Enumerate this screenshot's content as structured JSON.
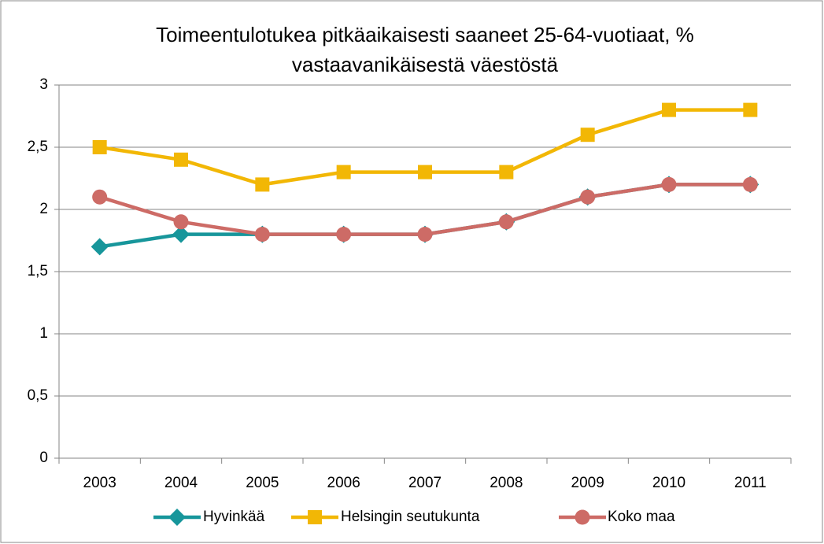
{
  "chart_data": {
    "type": "line",
    "title": [
      "Toimeentulotukea pitkäaikaisesti saaneet 25-64-vuotiaat, %",
      "vastaavanikäisestä väestöstä"
    ],
    "categories": [
      "2003",
      "2004",
      "2005",
      "2006",
      "2007",
      "2008",
      "2009",
      "2010",
      "2011"
    ],
    "series": [
      {
        "name": "Hyvinkää",
        "color": "#17969b",
        "marker": "diamond",
        "values": [
          1.7,
          1.8,
          1.8,
          1.8,
          1.8,
          1.9,
          2.1,
          2.2,
          2.2
        ]
      },
      {
        "name": "Helsingin seutukunta",
        "color": "#f2b705",
        "marker": "square",
        "values": [
          2.5,
          2.4,
          2.2,
          2.3,
          2.3,
          2.3,
          2.6,
          2.8,
          2.8
        ]
      },
      {
        "name": "Koko maa",
        "color": "#cd6b66",
        "marker": "circle",
        "values": [
          2.1,
          1.9,
          1.8,
          1.8,
          1.8,
          1.9,
          2.1,
          2.2,
          2.2
        ]
      }
    ],
    "ylim": [
      0,
      3
    ],
    "yticks": [
      0,
      {
        "value": 0.5,
        "label": "0,5"
      },
      1,
      {
        "value": 1.5,
        "label": "1,5"
      },
      2,
      {
        "value": 2.5,
        "label": "2,5"
      },
      3
    ],
    "grid": true,
    "legend": "bottom"
  }
}
